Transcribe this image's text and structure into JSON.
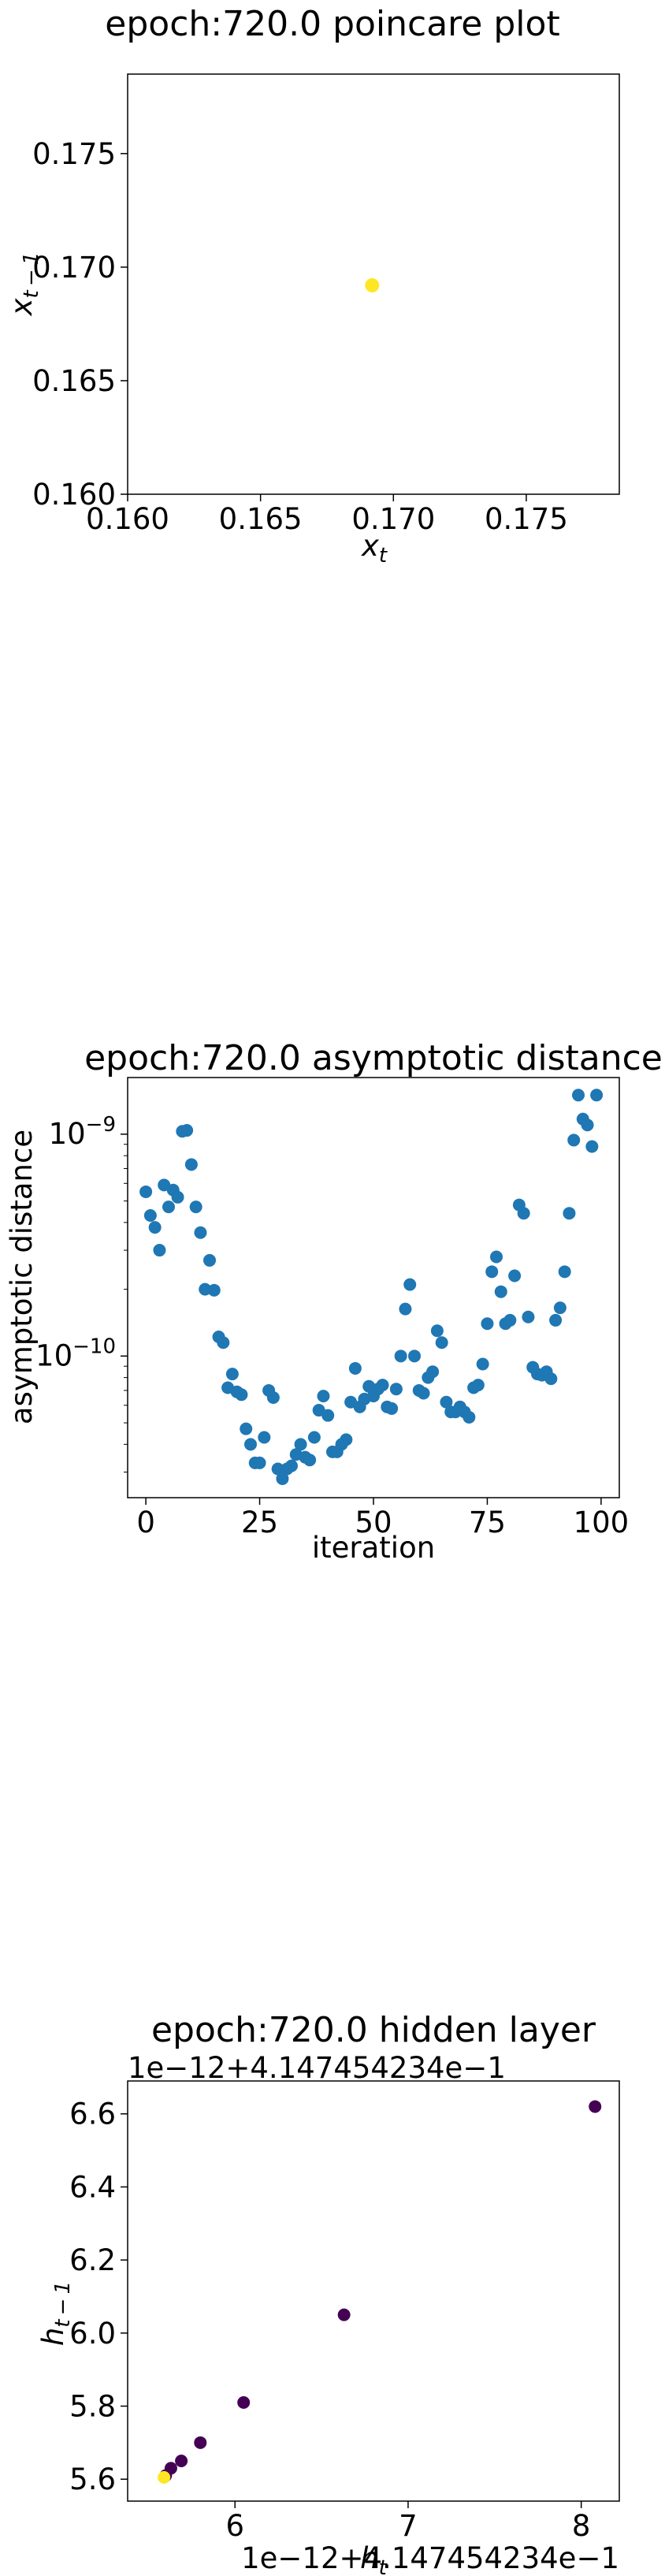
{
  "chart_data": [
    {
      "type": "scatter",
      "title": "epoch:720.0 poincare plot",
      "xlabel": "x_t",
      "ylabel": "x_{t-1}",
      "xlim": [
        0.16,
        0.1785
      ],
      "ylim": [
        0.16,
        0.1785
      ],
      "xticks": [
        0.16,
        0.165,
        0.17,
        0.175
      ],
      "yticks": [
        0.16,
        0.165,
        0.17,
        0.175
      ],
      "xtick_labels": [
        "0.160",
        "0.165",
        "0.170",
        "0.175"
      ],
      "ytick_labels": [
        "0.160",
        "0.165",
        "0.170",
        "0.175"
      ],
      "points": [
        {
          "x": 0.1692,
          "y": 0.1692
        }
      ],
      "color": "#fde725",
      "grid": false
    },
    {
      "type": "scatter",
      "title": "epoch:720.0 asymptotic distance",
      "xlabel": "iteration",
      "ylabel": "asymptotic distance",
      "yscale": "log",
      "xlim": [
        -4,
        104
      ],
      "ylim": [
        2.3e-11,
        1.8e-09
      ],
      "xticks": [
        0,
        25,
        50,
        75,
        100
      ],
      "xtick_labels": [
        "0",
        "25",
        "50",
        "75",
        "100"
      ],
      "ytick_labels": [
        {
          "base": "10",
          "exp": "−9",
          "value": 1e-09
        },
        {
          "base": "10",
          "exp": "−10",
          "value": 1e-10
        }
      ],
      "color": "#1f77b4",
      "grid": false,
      "x": [
        0,
        1,
        2,
        3,
        4,
        5,
        6,
        7,
        8,
        9,
        10,
        11,
        12,
        13,
        14,
        15,
        16,
        17,
        18,
        19,
        20,
        21,
        22,
        23,
        24,
        25,
        26,
        27,
        28,
        29,
        30,
        31,
        32,
        33,
        34,
        35,
        36,
        37,
        38,
        39,
        40,
        41,
        42,
        43,
        44,
        45,
        46,
        47,
        48,
        49,
        50,
        51,
        52,
        53,
        54,
        55,
        56,
        57,
        58,
        59,
        60,
        61,
        62,
        63,
        64,
        65,
        66,
        67,
        68,
        69,
        70,
        71,
        72,
        73,
        74,
        75,
        76,
        77,
        78,
        79,
        80,
        81,
        82,
        83,
        84,
        85,
        86,
        87,
        88,
        89,
        90,
        91,
        92,
        93,
        94,
        95,
        96,
        97,
        98,
        99
      ],
      "y": [
        5.5e-10,
        4.3e-10,
        3.8e-10,
        3e-10,
        5.9e-10,
        4.7e-10,
        5.6e-10,
        5.2e-10,
        1.03e-09,
        1.04e-09,
        7.3e-10,
        4.7e-10,
        3.6e-10,
        2e-10,
        2.7e-10,
        1.98e-10,
        1.22e-10,
        1.15e-10,
        7.2e-11,
        8.3e-11,
        6.9e-11,
        6.7e-11,
        4.7e-11,
        4e-11,
        3.3e-11,
        3.3e-11,
        4.3e-11,
        7e-11,
        6.5e-11,
        3.1e-11,
        2.8e-11,
        3.1e-11,
        3.2e-11,
        3.6e-11,
        4e-11,
        3.5e-11,
        3.4e-11,
        4.3e-11,
        5.7e-11,
        6.6e-11,
        5.4e-11,
        3.7e-11,
        3.7e-11,
        4e-11,
        4.2e-11,
        6.2e-11,
        8.8e-11,
        5.9e-11,
        6.4e-11,
        7.3e-11,
        6.6e-11,
        7.1e-11,
        7.4e-11,
        5.9e-11,
        5.8e-11,
        7.1e-11,
        1e-10,
        1.63e-10,
        2.1e-10,
        1e-10,
        7e-11,
        6.8e-11,
        8e-11,
        8.5e-11,
        1.3e-10,
        1.15e-10,
        6.2e-11,
        5.6e-11,
        5.6e-11,
        5.9e-11,
        5.6e-11,
        5.3e-11,
        7.2e-11,
        7.4e-11,
        9.2e-11,
        1.4e-10,
        2.4e-10,
        2.8e-10,
        1.95e-10,
        1.4e-10,
        1.45e-10,
        2.3e-10,
        4.8e-10,
        4.4e-10,
        1.5e-10,
        8.9e-11,
        8.3e-11,
        8.2e-11,
        8.5e-11,
        7.9e-11,
        1.45e-10,
        1.65e-10,
        2.4e-10,
        4.4e-10,
        9.4e-10,
        1.5e-09,
        1.17e-09,
        1.1e-09,
        8.8e-10,
        1.5e-09
      ]
    },
    {
      "type": "scatter",
      "title": "epoch:720.0 hidden layer",
      "xlabel": "h_t",
      "ylabel": "h_{t-1}",
      "x_offset_text": "1e−12+4.147454234e−1",
      "y_offset_text": "1e−12+4.147454234e−1",
      "xlim": [
        5.38,
        8.22
      ],
      "ylim": [
        5.54,
        6.69
      ],
      "xticks": [
        6,
        7,
        8
      ],
      "xtick_labels": [
        "6",
        "7",
        "8"
      ],
      "yticks": [
        5.6,
        5.8,
        6.0,
        6.2,
        6.4,
        6.6
      ],
      "ytick_labels": [
        "5.6",
        "5.8",
        "6.0",
        "6.2",
        "6.4",
        "6.6"
      ],
      "grid": false,
      "points": [
        {
          "x": 8.08,
          "y": 6.62,
          "color": "#440154"
        },
        {
          "x": 6.63,
          "y": 6.05,
          "color": "#440154"
        },
        {
          "x": 6.05,
          "y": 5.81,
          "color": "#440154"
        },
        {
          "x": 5.8,
          "y": 5.7,
          "color": "#440154"
        },
        {
          "x": 5.69,
          "y": 5.65,
          "color": "#440154"
        },
        {
          "x": 5.63,
          "y": 5.63,
          "color": "#440154"
        },
        {
          "x": 5.6,
          "y": 5.61,
          "color": "#440154"
        },
        {
          "x": 5.59,
          "y": 5.605,
          "color": "#fde725"
        }
      ]
    }
  ]
}
